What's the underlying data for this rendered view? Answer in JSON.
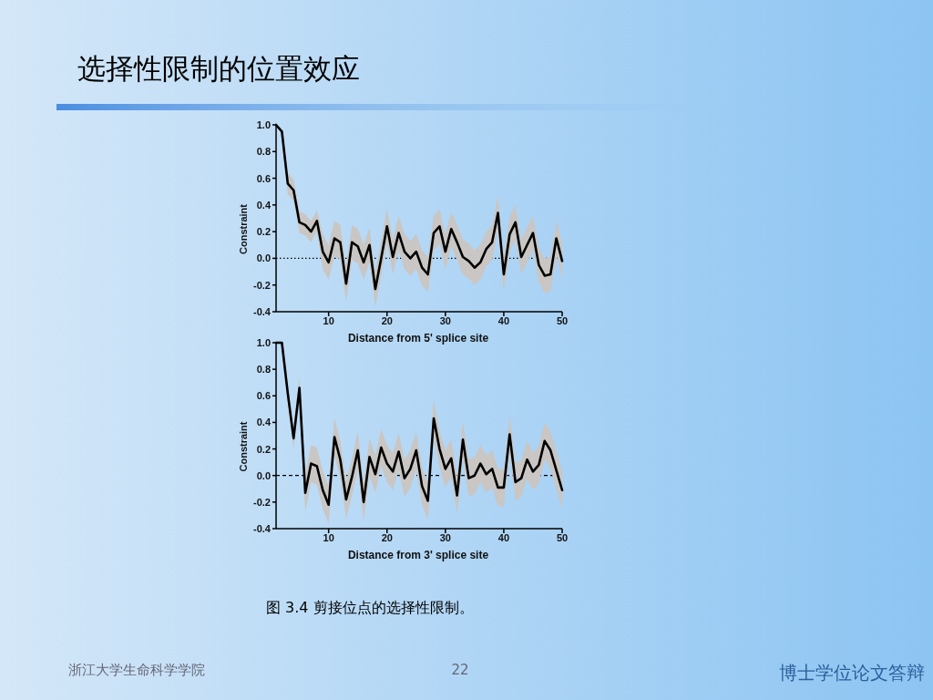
{
  "chart_data": [
    {
      "type": "line",
      "title": "选择性限制的位置效应",
      "xlabel": "Distance from 5' splice site",
      "ylabel": "Constraint",
      "x": [
        1,
        2,
        3,
        4,
        5,
        6,
        7,
        8,
        9,
        10,
        11,
        12,
        13,
        14,
        15,
        16,
        17,
        18,
        19,
        20,
        21,
        22,
        23,
        24,
        25,
        26,
        27,
        28,
        29,
        30,
        31,
        32,
        33,
        34,
        35,
        36,
        37,
        38,
        39,
        40,
        41,
        42,
        43,
        44,
        45,
        46,
        47,
        48,
        49,
        50
      ],
      "series": [
        {
          "color": "#000000",
          "values": [
            1.0,
            0.95,
            0.56,
            0.51,
            0.27,
            0.25,
            0.2,
            0.28,
            0.05,
            -0.03,
            0.15,
            0.12,
            -0.19,
            0.12,
            0.09,
            -0.03,
            0.1,
            -0.23,
            0.0,
            0.24,
            0.01,
            0.19,
            0.05,
            0.0,
            0.05,
            -0.07,
            -0.12,
            0.19,
            0.24,
            0.05,
            0.22,
            0.12,
            0.01,
            -0.02,
            -0.07,
            -0.03,
            0.07,
            0.12,
            0.34,
            -0.12,
            0.18,
            0.27,
            0.01,
            0.1,
            0.19,
            -0.05,
            -0.13,
            -0.12,
            0.15,
            -0.02
          ],
          "lower": [
            1.0,
            0.95,
            0.48,
            0.43,
            0.19,
            0.17,
            0.12,
            0.2,
            -0.08,
            -0.16,
            0.02,
            -0.01,
            -0.32,
            -0.01,
            -0.04,
            -0.16,
            -0.03,
            -0.36,
            -0.13,
            0.11,
            -0.12,
            0.06,
            -0.08,
            -0.13,
            -0.08,
            -0.2,
            -0.25,
            0.06,
            0.11,
            -0.08,
            0.09,
            -0.01,
            -0.12,
            -0.15,
            -0.2,
            -0.16,
            -0.06,
            -0.01,
            0.21,
            -0.25,
            0.05,
            0.14,
            -0.12,
            -0.03,
            0.06,
            -0.18,
            -0.26,
            -0.25,
            0.02,
            -0.15
          ],
          "upper": [
            1.0,
            0.95,
            0.64,
            0.59,
            0.35,
            0.33,
            0.28,
            0.36,
            0.18,
            0.1,
            0.28,
            0.25,
            -0.06,
            0.25,
            0.22,
            0.1,
            0.23,
            -0.1,
            0.13,
            0.37,
            0.14,
            0.32,
            0.18,
            0.13,
            0.18,
            0.06,
            0.01,
            0.32,
            0.37,
            0.18,
            0.35,
            0.25,
            0.14,
            0.11,
            0.06,
            0.1,
            0.2,
            0.25,
            0.47,
            0.01,
            0.31,
            0.4,
            0.14,
            0.23,
            0.32,
            0.08,
            0.0,
            0.01,
            0.28,
            0.11
          ]
        }
      ],
      "xlim": [
        1,
        50
      ],
      "xticks": [
        10,
        20,
        30,
        40,
        50
      ],
      "ylim": [
        -0.4,
        1.0
      ],
      "yticks": [
        {
          "value": -0.4,
          "label": "-0.4"
        },
        {
          "value": -0.2,
          "label": "-0.2"
        },
        {
          "value": 0,
          "label": "0.0"
        },
        {
          "value": 0.2,
          "label": "0.2"
        },
        {
          "value": 0.4,
          "label": "0.4"
        },
        {
          "value": 0.6,
          "label": "0.6"
        },
        {
          "value": 0.8,
          "label": "0.8"
        },
        {
          "value": 1.0,
          "label": "1.0"
        }
      ],
      "ref_lines": [
        {
          "axis": "y",
          "value": 0,
          "line_style": "dotted"
        }
      ]
    },
    {
      "type": "line",
      "xlabel": "Distance from 3' splice site",
      "ylabel": "Constraint",
      "x": [
        1,
        2,
        3,
        4,
        5,
        6,
        7,
        8,
        9,
        10,
        11,
        12,
        13,
        14,
        15,
        16,
        17,
        18,
        19,
        20,
        21,
        22,
        23,
        24,
        25,
        26,
        27,
        28,
        29,
        30,
        31,
        32,
        33,
        34,
        35,
        36,
        37,
        38,
        39,
        40,
        41,
        42,
        43,
        44,
        45,
        46,
        47,
        48,
        49,
        50
      ],
      "series": [
        {
          "color": "#000000",
          "values": [
            1.0,
            1.0,
            0.62,
            0.28,
            0.66,
            -0.13,
            0.09,
            0.07,
            -0.11,
            -0.22,
            0.29,
            0.12,
            -0.18,
            -0.01,
            0.19,
            -0.2,
            0.14,
            0.01,
            0.21,
            0.09,
            0.03,
            0.18,
            -0.02,
            0.05,
            0.19,
            -0.08,
            -0.19,
            0.43,
            0.2,
            0.05,
            0.13,
            -0.15,
            0.27,
            -0.02,
            0.0,
            0.09,
            0.01,
            0.05,
            -0.09,
            -0.09,
            0.31,
            -0.05,
            -0.02,
            0.12,
            0.03,
            0.08,
            0.26,
            0.19,
            0.04,
            -0.11
          ],
          "lower": [
            1.0,
            1.0,
            0.54,
            0.2,
            0.58,
            -0.27,
            -0.05,
            -0.07,
            -0.25,
            -0.36,
            0.15,
            -0.02,
            -0.32,
            -0.15,
            0.05,
            -0.34,
            0.0,
            -0.13,
            0.07,
            -0.05,
            -0.11,
            0.04,
            -0.16,
            -0.09,
            0.05,
            -0.22,
            -0.33,
            0.29,
            0.06,
            -0.09,
            -0.01,
            -0.29,
            0.13,
            -0.16,
            -0.14,
            -0.05,
            -0.13,
            -0.09,
            -0.23,
            -0.23,
            0.17,
            -0.19,
            -0.16,
            -0.02,
            -0.11,
            -0.06,
            0.12,
            0.05,
            -0.1,
            -0.25
          ],
          "upper": [
            1.0,
            1.0,
            0.7,
            0.36,
            0.74,
            0.01,
            0.23,
            0.21,
            0.03,
            -0.08,
            0.43,
            0.26,
            -0.04,
            0.13,
            0.33,
            -0.06,
            0.28,
            0.15,
            0.35,
            0.23,
            0.17,
            0.32,
            0.12,
            0.19,
            0.33,
            0.06,
            -0.05,
            0.57,
            0.34,
            0.19,
            0.27,
            -0.01,
            0.41,
            0.12,
            0.14,
            0.23,
            0.15,
            0.19,
            0.05,
            0.05,
            0.45,
            0.09,
            0.12,
            0.26,
            0.17,
            0.22,
            0.4,
            0.33,
            0.18,
            0.03
          ]
        }
      ],
      "xlim": [
        1,
        50
      ],
      "xticks": [
        10,
        20,
        30,
        40,
        50
      ],
      "ylim": [
        -0.4,
        1.0
      ],
      "yticks": [
        {
          "value": -0.4,
          "label": "-0.4"
        },
        {
          "value": -0.2,
          "label": "-0.2"
        },
        {
          "value": 0,
          "label": "0.0"
        },
        {
          "value": 0.2,
          "label": "0.2"
        },
        {
          "value": 0.4,
          "label": "0.4"
        },
        {
          "value": 0.6,
          "label": "0.6"
        },
        {
          "value": 0.8,
          "label": "0.8"
        },
        {
          "value": 1.0,
          "label": "1.0"
        }
      ],
      "ref_lines": [
        {
          "axis": "y",
          "value": 0,
          "line_style": "dashed"
        }
      ],
      "annotations": [
        "图 3.4 剪接位点的选择性限制。",
        "浙江大学生命科学学院",
        "22",
        "博士学位论文答辩"
      ]
    }
  ]
}
